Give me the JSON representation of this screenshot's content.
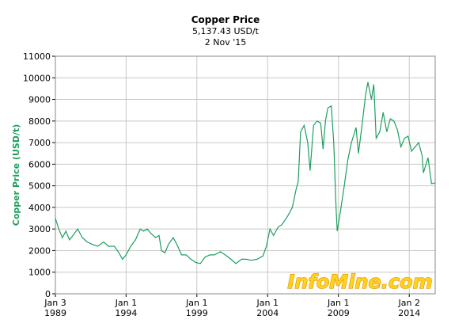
{
  "chart_data": {
    "type": "line",
    "title": "Copper Price",
    "subtitle": "5,137.43 USD/t",
    "date_label": "2 Nov '15",
    "ylabel": "Copper Price (USD/t)",
    "watermark": "InfoMine.com",
    "color": "#1e9e5e",
    "grid": true,
    "xlim": [
      "1989-01-03",
      "2015-11-02"
    ],
    "xticks": [
      {
        "value": "1989-01-03",
        "label": "Jan 3 1989"
      },
      {
        "value": "1994-01-01",
        "label": "Jan 1 1994"
      },
      {
        "value": "1999-01-01",
        "label": "Jan 1 1999"
      },
      {
        "value": "2004-01-01",
        "label": "Jan 1 2004"
      },
      {
        "value": "2009-01-01",
        "label": "Jan 1 2009"
      },
      {
        "value": "2014-01-02",
        "label": "Jan 2 2014"
      }
    ],
    "ylim": [
      0,
      11000
    ],
    "yticks": [
      0,
      1000,
      2000,
      3000,
      4000,
      5000,
      6000,
      7000,
      8000,
      9000,
      10000,
      11000
    ],
    "x": [
      "1989-01",
      "1989-04",
      "1989-07",
      "1989-10",
      "1990-01",
      "1990-04",
      "1990-08",
      "1990-12",
      "1991-04",
      "1991-08",
      "1992-01",
      "1992-06",
      "1992-10",
      "1993-03",
      "1993-07",
      "1993-10",
      "1994-01",
      "1994-05",
      "1994-09",
      "1995-01",
      "1995-04",
      "1995-07",
      "1995-10",
      "1996-02",
      "1996-05",
      "1996-07",
      "1996-10",
      "1997-01",
      "1997-05",
      "1997-08",
      "1997-12",
      "1998-04",
      "1998-08",
      "1998-12",
      "1999-04",
      "1999-08",
      "1999-12",
      "2000-04",
      "2000-09",
      "2001-01",
      "2001-06",
      "2001-10",
      "2002-03",
      "2002-07",
      "2002-11",
      "2003-04",
      "2003-09",
      "2003-12",
      "2004-03",
      "2004-06",
      "2004-10",
      "2005-01",
      "2005-06",
      "2005-10",
      "2006-01",
      "2006-03",
      "2006-05",
      "2006-08",
      "2006-11",
      "2007-01",
      "2007-04",
      "2007-07",
      "2007-10",
      "2007-12",
      "2008-02",
      "2008-04",
      "2008-07",
      "2008-09",
      "2008-11",
      "2008-12",
      "2009-03",
      "2009-06",
      "2009-09",
      "2009-12",
      "2010-04",
      "2010-06",
      "2010-09",
      "2010-12",
      "2011-02",
      "2011-05",
      "2011-07",
      "2011-09",
      "2011-12",
      "2012-03",
      "2012-06",
      "2012-09",
      "2012-12",
      "2013-03",
      "2013-06",
      "2013-09",
      "2013-12",
      "2014-03",
      "2014-06",
      "2014-09",
      "2014-12",
      "2015-01",
      "2015-05",
      "2015-08",
      "2015-11-02"
    ],
    "values": [
      3500,
      3000,
      2600,
      2900,
      2500,
      2700,
      3000,
      2600,
      2400,
      2300,
      2200,
      2400,
      2200,
      2200,
      1900,
      1600,
      1800,
      2200,
      2500,
      3000,
      2900,
      3000,
      2800,
      2600,
      2700,
      2000,
      1900,
      2300,
      2600,
      2300,
      1800,
      1800,
      1600,
      1450,
      1400,
      1700,
      1800,
      1800,
      1950,
      1800,
      1600,
      1400,
      1600,
      1600,
      1550,
      1600,
      1750,
      2200,
      3000,
      2700,
      3100,
      3200,
      3600,
      4000,
      4800,
      5200,
      7500,
      7800,
      7000,
      5700,
      7800,
      8000,
      7900,
      6700,
      8000,
      8600,
      8700,
      7000,
      4000,
      2900,
      3900,
      5000,
      6200,
      7000,
      7700,
      6500,
      7800,
      9200,
      9800,
      9000,
      9700,
      7200,
      7500,
      8400,
      7500,
      8100,
      8000,
      7600,
      6800,
      7200,
      7300,
      6600,
      6800,
      7000,
      6400,
      5600,
      6300,
      5100,
      5137.43
    ]
  }
}
